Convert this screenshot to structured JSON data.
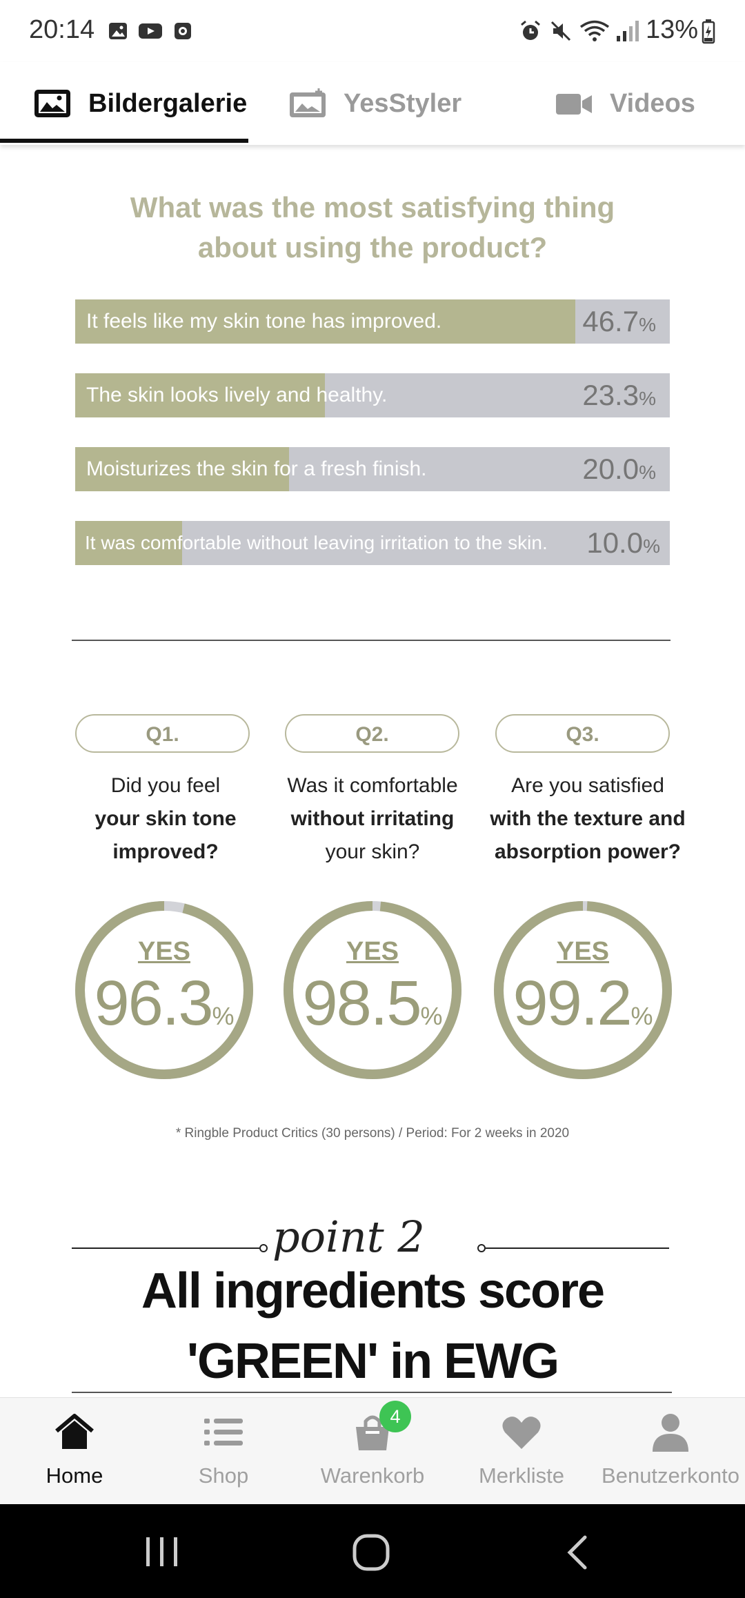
{
  "status_bar": {
    "time": "20:14",
    "battery": "13%"
  },
  "tabs": [
    {
      "label": "Bildergalerie",
      "icon": "image-icon",
      "active": true
    },
    {
      "label": "YesStyler",
      "icon": "photo-album-icon",
      "active": false
    },
    {
      "label": "Videos",
      "icon": "video-camera-icon",
      "active": false
    }
  ],
  "survey": {
    "title_line1": "What was the most satisfying thing",
    "title_line2": "about using the product?",
    "bars": [
      {
        "label": "It feels like my skin tone has improved.",
        "percent": "46.7",
        "unit": "%",
        "value": 46.7
      },
      {
        "label": "The skin looks lively and healthy.",
        "percent": "23.3",
        "unit": "%",
        "value": 23.3
      },
      {
        "label": "Moisturizes the skin for a fresh finish.",
        "percent": "20.0",
        "unit": "%",
        "value": 20.0
      },
      {
        "label": "It was comfortable without leaving irritation to the skin.",
        "percent": "10.0",
        "unit": "%",
        "value": 10.0
      }
    ]
  },
  "questions": [
    {
      "q": "Q1.",
      "line1": "Did you feel",
      "line2": "your skin tone",
      "line3": "improved?",
      "yes": "YES",
      "value": "96.3",
      "unit": "%",
      "fraction": 0.963
    },
    {
      "q": "Q2.",
      "line1": "Was it comfortable",
      "line2": "without irritating",
      "line3": "your skin?",
      "yes": "YES",
      "value": "98.5",
      "unit": "%",
      "fraction": 0.985
    },
    {
      "q": "Q3.",
      "line1": "Are you satisfied",
      "line2": "with the texture and",
      "line3": "absorption power?",
      "yes": "YES",
      "value": "99.2",
      "unit": "%",
      "fraction": 0.992
    }
  ],
  "footnote": "* Ringble Product Critics (30 persons) / Period: For 2 weeks in 2020",
  "point": {
    "script": "point 2",
    "headline1": "All ingredients score",
    "headline2": "'GREEN' in EWG"
  },
  "bottom_nav": [
    {
      "label": "Home",
      "icon": "home-icon",
      "active": true
    },
    {
      "label": "Shop",
      "icon": "list-icon",
      "active": false
    },
    {
      "label": "Warenkorb",
      "icon": "shopping-bag-icon",
      "active": false,
      "badge": "4"
    },
    {
      "label": "Merkliste",
      "icon": "heart-icon",
      "active": false
    },
    {
      "label": "Benutzerkonto",
      "icon": "user-icon",
      "active": false
    }
  ],
  "colors": {
    "olive": "#b4b690",
    "olive_dark": "#9b9d7a",
    "bar_bg": "#c7c8ce",
    "badge": "#3ec454"
  }
}
